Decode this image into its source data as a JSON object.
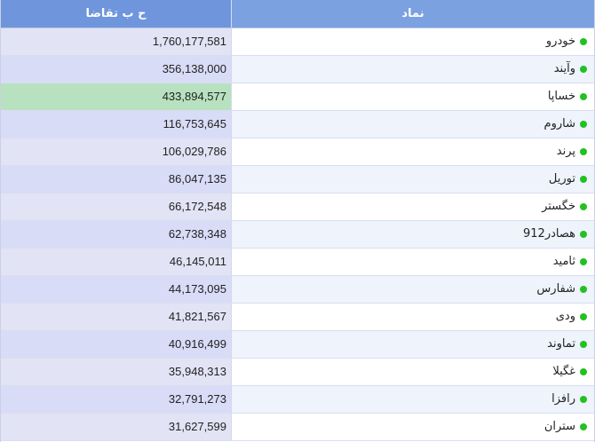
{
  "header": {
    "value_col": "ح ب تقاضا",
    "symbol_col": "نماد"
  },
  "colors": {
    "status_dot": "#22c122",
    "highlight_row": "#b8e2bf"
  },
  "rows": [
    {
      "symbol": "خودرو",
      "value": "1,760,177,581",
      "status_icon": "green-dot-icon"
    },
    {
      "symbol": "وآیند",
      "value": "356,138,000",
      "status_icon": "green-dot-icon"
    },
    {
      "symbol": "خساپا",
      "value": "433,894,577",
      "status_icon": "green-dot-icon",
      "highlighted": true
    },
    {
      "symbol": "شاروم",
      "value": "116,753,645",
      "status_icon": "green-dot-icon"
    },
    {
      "symbol": "پرند",
      "value": "106,029,786",
      "status_icon": "green-dot-icon"
    },
    {
      "symbol": "توریل",
      "value": "86,047,135",
      "status_icon": "green-dot-icon"
    },
    {
      "symbol": "خگستر",
      "value": "66,172,548",
      "status_icon": "green-dot-icon"
    },
    {
      "symbol": "هصادر912",
      "value": "62,738,348",
      "status_icon": "green-dot-icon"
    },
    {
      "symbol": "ثامید",
      "value": "46,145,011",
      "status_icon": "green-dot-icon"
    },
    {
      "symbol": "شفارس",
      "value": "44,173,095",
      "status_icon": "green-dot-icon"
    },
    {
      "symbol": "ودی",
      "value": "41,821,567",
      "status_icon": "green-dot-icon"
    },
    {
      "symbol": "تماوند",
      "value": "40,916,499",
      "status_icon": "green-dot-icon"
    },
    {
      "symbol": "غگیلا",
      "value": "35,948,313",
      "status_icon": "green-dot-icon"
    },
    {
      "symbol": "رافزا",
      "value": "32,791,273",
      "status_icon": "green-dot-icon"
    },
    {
      "symbol": "ستران",
      "value": "31,627,599",
      "status_icon": "green-dot-icon"
    }
  ]
}
